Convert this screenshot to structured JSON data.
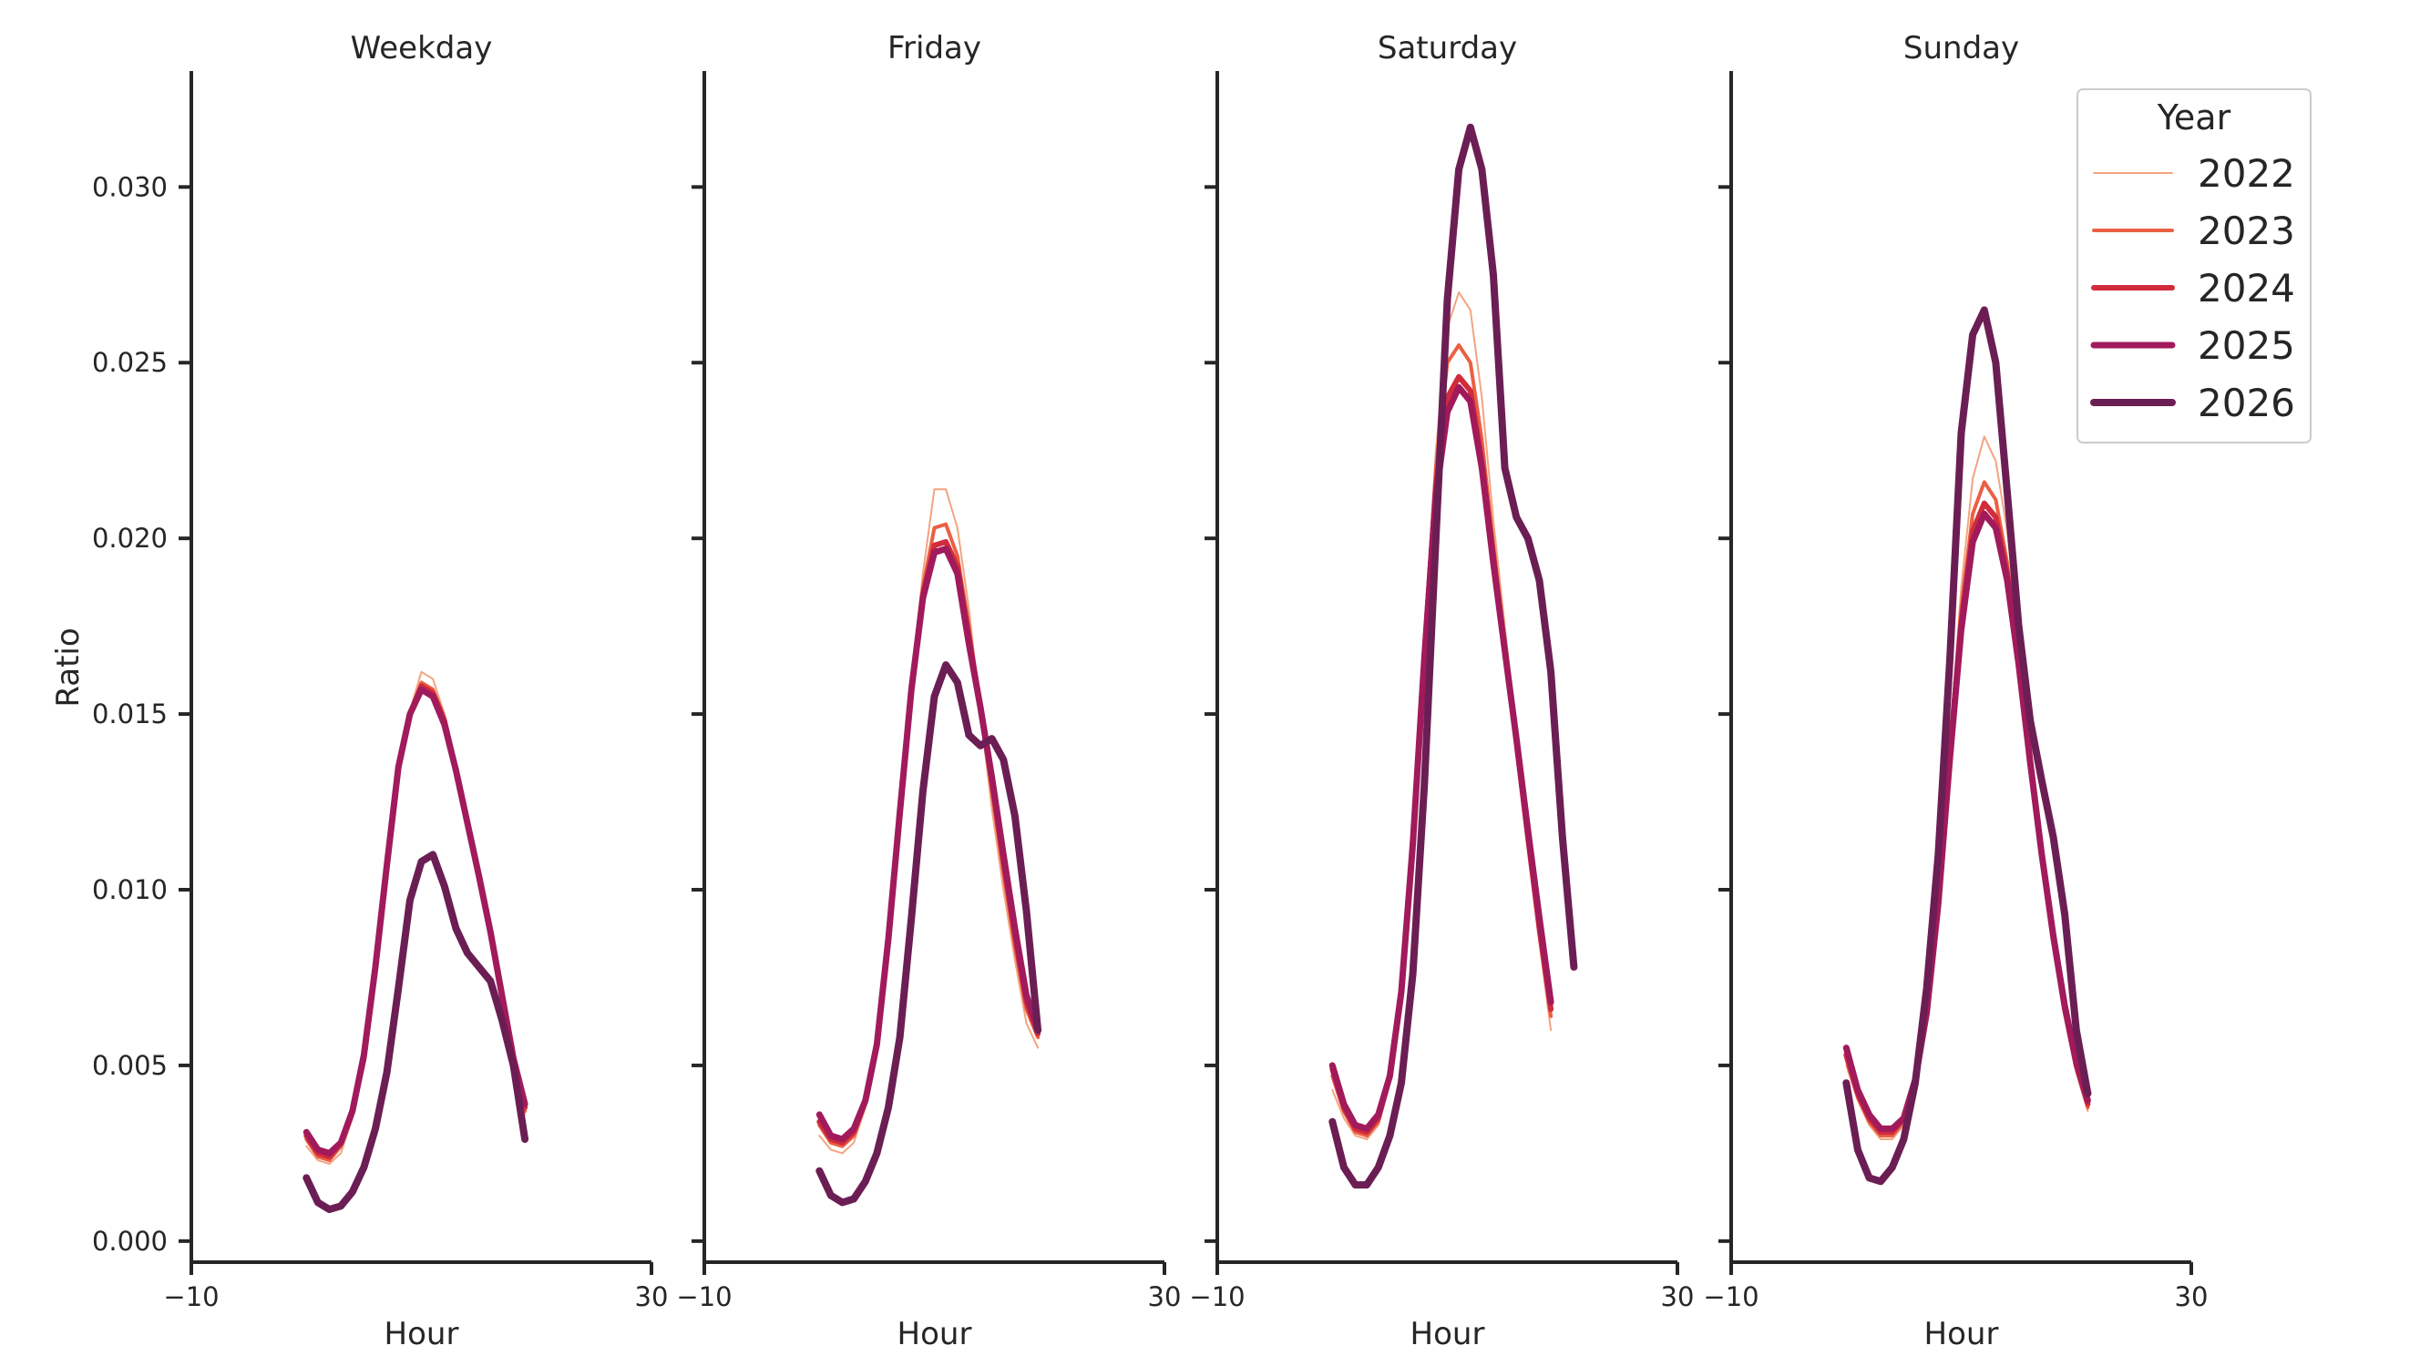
{
  "chart_data": {
    "type": "line",
    "shared_y": {
      "label": "Ratio",
      "ylim": [
        -0.0006,
        0.0333
      ],
      "ticks": [
        0.0,
        0.005,
        0.01,
        0.015,
        0.02,
        0.025,
        0.03
      ],
      "tick_labels": [
        "0.000",
        "0.005",
        "0.010",
        "0.015",
        "0.020",
        "0.025",
        "0.030"
      ]
    },
    "shared_x": {
      "label": "Hour",
      "xlim": [
        -10,
        30
      ],
      "ticks": [
        -10,
        30
      ],
      "tick_labels": [
        "−10",
        "30"
      ]
    },
    "legend": {
      "title": "Year",
      "position": "top-right",
      "entries": [
        "2022",
        "2023",
        "2024",
        "2025",
        "2026"
      ]
    },
    "styles": {
      "2022": {
        "color": "#f3a481",
        "width": 2
      },
      "2023": {
        "color": "#eb6044",
        "width": 4
      },
      "2024": {
        "color": "#d12c3c",
        "width": 6
      },
      "2025": {
        "color": "#a11a5b",
        "width": 7
      },
      "2026": {
        "color": "#6b1e54",
        "width": 8
      }
    },
    "panels": [
      {
        "title": "Weekday",
        "x_start": 0,
        "series": [
          {
            "name": "2022",
            "values": [
              0.0027,
              0.0023,
              0.0022,
              0.0025,
              0.0035,
              0.0051,
              0.0077,
              0.0107,
              0.0135,
              0.0151,
              0.0162,
              0.016,
              0.015,
              0.0136,
              0.0121,
              0.0106,
              0.009,
              0.0071,
              0.0049,
              0.0036
            ]
          },
          {
            "name": "2023",
            "values": [
              0.0029,
              0.0024,
              0.0023,
              0.0027,
              0.0036,
              0.0052,
              0.0078,
              0.0107,
              0.0135,
              0.015,
              0.0159,
              0.0157,
              0.0149,
              0.0135,
              0.012,
              0.0105,
              0.0088,
              0.007,
              0.005,
              0.0037
            ]
          },
          {
            "name": "2024",
            "values": [
              0.003,
              0.0025,
              0.0024,
              0.0028,
              0.0037,
              0.0052,
              0.0078,
              0.0107,
              0.0135,
              0.015,
              0.0158,
              0.0156,
              0.0148,
              0.0134,
              0.0119,
              0.0104,
              0.0088,
              0.007,
              0.0051,
              0.0038
            ]
          },
          {
            "name": "2025",
            "values": [
              0.0031,
              0.0026,
              0.0025,
              0.0028,
              0.0037,
              0.0053,
              0.0078,
              0.0107,
              0.0135,
              0.015,
              0.0157,
              0.0155,
              0.0147,
              0.0134,
              0.0119,
              0.0104,
              0.0088,
              0.007,
              0.0052,
              0.0039
            ]
          },
          {
            "name": "2026",
            "values": [
              0.0018,
              0.0011,
              0.0009,
              0.001,
              0.0014,
              0.0021,
              0.0032,
              0.0048,
              0.0072,
              0.0097,
              0.0108,
              0.011,
              0.0101,
              0.0089,
              0.0082,
              0.0078,
              0.0074,
              0.0063,
              0.005,
              0.0029
            ]
          }
        ]
      },
      {
        "title": "Friday",
        "x_start": 0,
        "series": [
          {
            "name": "2022",
            "values": [
              0.003,
              0.0026,
              0.0025,
              0.0028,
              0.0038,
              0.0055,
              0.0085,
              0.0122,
              0.016,
              0.019,
              0.0214,
              0.0214,
              0.0203,
              0.018,
              0.015,
              0.0123,
              0.01,
              0.008,
              0.0062,
              0.0055
            ]
          },
          {
            "name": "2023",
            "values": [
              0.0033,
              0.0028,
              0.0027,
              0.003,
              0.0039,
              0.0056,
              0.0086,
              0.0122,
              0.0158,
              0.0186,
              0.0203,
              0.0204,
              0.0195,
              0.0175,
              0.0152,
              0.0128,
              0.0105,
              0.0084,
              0.0066,
              0.0058
            ]
          },
          {
            "name": "2024",
            "values": [
              0.0034,
              0.0029,
              0.0028,
              0.0031,
              0.004,
              0.0056,
              0.0086,
              0.0122,
              0.0157,
              0.0184,
              0.0198,
              0.0199,
              0.0192,
              0.0172,
              0.0152,
              0.0131,
              0.0108,
              0.0087,
              0.0068,
              0.0059
            ]
          },
          {
            "name": "2025",
            "values": [
              0.0036,
              0.003,
              0.0029,
              0.0032,
              0.004,
              0.0056,
              0.0086,
              0.0122,
              0.0157,
              0.0183,
              0.0196,
              0.0197,
              0.019,
              0.017,
              0.0152,
              0.0132,
              0.011,
              0.0089,
              0.007,
              0.006
            ]
          },
          {
            "name": "2026",
            "values": [
              0.002,
              0.0013,
              0.0011,
              0.0012,
              0.0017,
              0.0025,
              0.0038,
              0.0058,
              0.0092,
              0.0128,
              0.0155,
              0.0164,
              0.0159,
              0.0144,
              0.0141,
              0.0143,
              0.0137,
              0.0121,
              0.0094,
              0.006
            ]
          }
        ]
      },
      {
        "title": "Saturday",
        "x_start": 0,
        "series": [
          {
            "name": "2022",
            "values": [
              0.0043,
              0.0035,
              0.003,
              0.0029,
              0.0033,
              0.0045,
              0.0068,
              0.0112,
              0.017,
              0.0225,
              0.026,
              0.027,
              0.0265,
              0.024,
              0.0205,
              0.0175,
              0.0145,
              0.0115,
              0.0085,
              0.006
            ]
          },
          {
            "name": "2023",
            "values": [
              0.0047,
              0.0037,
              0.0031,
              0.003,
              0.0034,
              0.0046,
              0.007,
              0.0113,
              0.0168,
              0.022,
              0.025,
              0.0255,
              0.025,
              0.0228,
              0.0198,
              0.017,
              0.0142,
              0.0114,
              0.0087,
              0.0064
            ]
          },
          {
            "name": "2024",
            "values": [
              0.0049,
              0.0038,
              0.0032,
              0.0031,
              0.0035,
              0.0047,
              0.007,
              0.0113,
              0.0167,
              0.0215,
              0.024,
              0.0246,
              0.0242,
              0.0222,
              0.0195,
              0.0168,
              0.0142,
              0.0115,
              0.0089,
              0.0066
            ]
          },
          {
            "name": "2025",
            "values": [
              0.005,
              0.0039,
              0.0033,
              0.0032,
              0.0036,
              0.0047,
              0.0071,
              0.0113,
              0.0166,
              0.0212,
              0.0236,
              0.0243,
              0.0239,
              0.022,
              0.0193,
              0.0168,
              0.0143,
              0.0117,
              0.0092,
              0.0068
            ]
          },
          {
            "name": "2026",
            "values": [
              0.0034,
              0.0021,
              0.0016,
              0.0016,
              0.0021,
              0.003,
              0.0045,
              0.0076,
              0.013,
              0.02,
              0.0268,
              0.0305,
              0.0317,
              0.0305,
              0.0275,
              0.022,
              0.0206,
              0.02,
              0.0188,
              0.0162,
              0.0115,
              0.0078
            ]
          }
        ]
      },
      {
        "title": "Sunday",
        "x_start": 0,
        "series": [
          {
            "name": "2022",
            "values": [
              0.005,
              0.004,
              0.0033,
              0.0029,
              0.0029,
              0.0033,
              0.0044,
              0.0065,
              0.0098,
              0.0142,
              0.0186,
              0.0217,
              0.0229,
              0.0222,
              0.0202,
              0.0172,
              0.014,
              0.011,
              0.0085,
              0.0064,
              0.0048,
              0.0037
            ]
          },
          {
            "name": "2023",
            "values": [
              0.0052,
              0.0041,
              0.0034,
              0.003,
              0.003,
              0.0034,
              0.0045,
              0.0065,
              0.0097,
              0.014,
              0.018,
              0.0207,
              0.0216,
              0.0211,
              0.0193,
              0.0167,
              0.0138,
              0.011,
              0.0086,
              0.0065,
              0.0049,
              0.0038
            ]
          },
          {
            "name": "2024",
            "values": [
              0.0053,
              0.0042,
              0.0035,
              0.0031,
              0.0031,
              0.0035,
              0.0045,
              0.0065,
              0.0097,
              0.0138,
              0.0176,
              0.0202,
              0.021,
              0.0206,
              0.019,
              0.0165,
              0.0137,
              0.011,
              0.0086,
              0.0066,
              0.005,
              0.0039
            ]
          },
          {
            "name": "2025",
            "values": [
              0.0055,
              0.0043,
              0.0036,
              0.0032,
              0.0032,
              0.0035,
              0.0046,
              0.0065,
              0.0096,
              0.0137,
              0.0174,
              0.0199,
              0.0207,
              0.0203,
              0.0188,
              0.0164,
              0.0136,
              0.011,
              0.0087,
              0.0067,
              0.0051,
              0.004
            ]
          },
          {
            "name": "2026",
            "values": [
              0.0045,
              0.0026,
              0.0018,
              0.0017,
              0.0021,
              0.0029,
              0.0045,
              0.0072,
              0.011,
              0.0165,
              0.023,
              0.0258,
              0.0265,
              0.025,
              0.0213,
              0.0175,
              0.0148,
              0.0131,
              0.0115,
              0.0093,
              0.006,
              0.0042
            ]
          }
        ]
      }
    ]
  }
}
